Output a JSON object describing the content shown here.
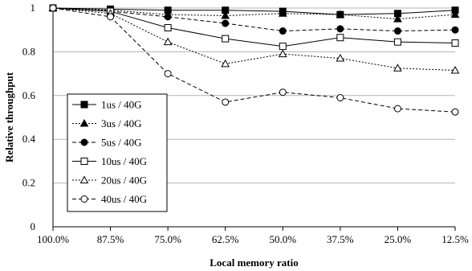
{
  "chart_data": {
    "type": "line",
    "title": "",
    "xlabel": "Local memory ratio",
    "ylabel": "Relative throughput",
    "categories": [
      "100.0%",
      "87.5%",
      "75.0%",
      "62.5%",
      "50.0%",
      "37.5%",
      "25.0%",
      "12.5%"
    ],
    "ylim": [
      0,
      1
    ],
    "yticks": [
      "0",
      "0.2",
      "0.4",
      "0.6",
      "0.8",
      "1"
    ],
    "grid": "horizontal",
    "legend_placement": "bottom-left",
    "series": [
      {
        "name": "1us / 40G",
        "line": "solid",
        "marker": "square",
        "filled": true,
        "values": [
          1.0,
          0.995,
          0.99,
          0.99,
          0.985,
          0.97,
          0.975,
          0.99
        ]
      },
      {
        "name": "3us / 40G",
        "line": "dotted",
        "marker": "triangle",
        "filled": true,
        "values": [
          1.0,
          0.99,
          0.97,
          0.965,
          0.975,
          0.97,
          0.95,
          0.97
        ]
      },
      {
        "name": "5us / 40G",
        "line": "dashed",
        "marker": "circle",
        "filled": true,
        "values": [
          1.0,
          0.985,
          0.96,
          0.93,
          0.895,
          0.905,
          0.895,
          0.9
        ]
      },
      {
        "name": "10us / 40G",
        "line": "solid",
        "marker": "square",
        "filled": false,
        "values": [
          1.0,
          0.985,
          0.91,
          0.86,
          0.825,
          0.865,
          0.845,
          0.84
        ]
      },
      {
        "name": "20us / 40G",
        "line": "dotted",
        "marker": "triangle",
        "filled": false,
        "values": [
          1.0,
          0.975,
          0.845,
          0.745,
          0.79,
          0.77,
          0.725,
          0.715
        ]
      },
      {
        "name": "40us / 40G",
        "line": "dashed",
        "marker": "circle",
        "filled": false,
        "values": [
          1.0,
          0.96,
          0.7,
          0.57,
          0.615,
          0.59,
          0.54,
          0.525
        ]
      }
    ]
  }
}
